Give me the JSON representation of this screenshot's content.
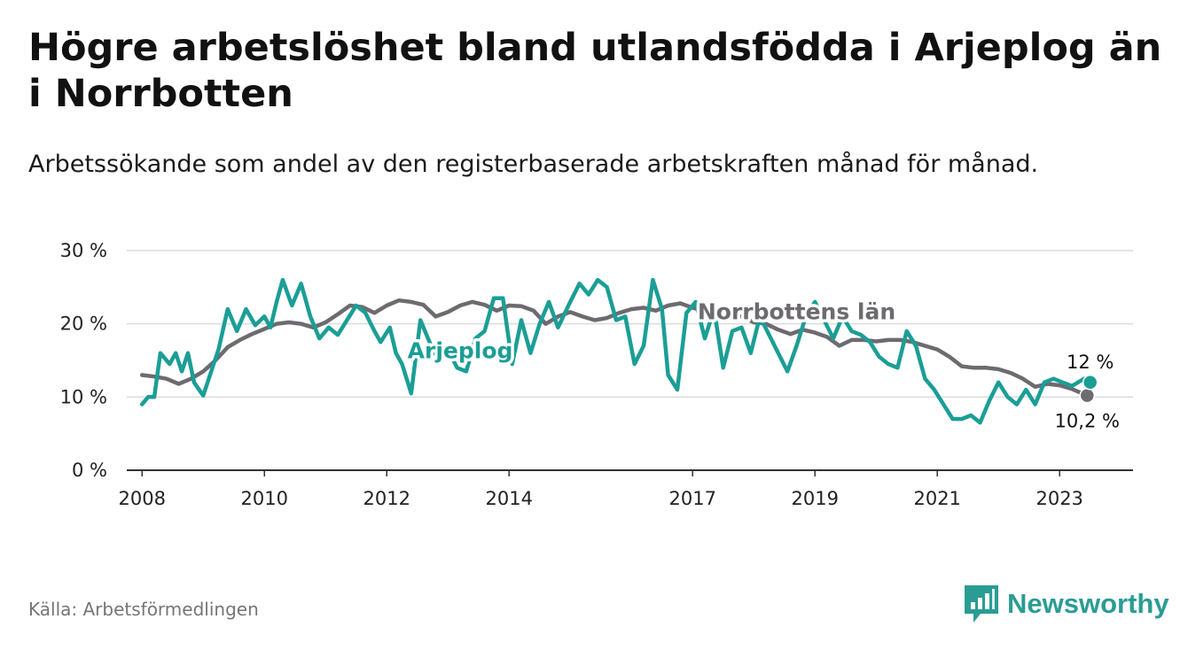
{
  "title": "Högre arbetslöshet bland utlandsfödda i Arjeplog än i Norrbotten",
  "subtitle": "Arbetssökande som andel av den registerbaserade arbetskraften månad för månad.",
  "source": "Källa: Arbetsförmedlingen",
  "brand": {
    "name": "Newsworthy",
    "icon": "bar-chart-logo-icon",
    "color": "#2a9c93"
  },
  "chart_data": {
    "type": "line",
    "title": "Högre arbetslöshet bland utlandsfödda i Arjeplog än i Norrbotten",
    "subtitle": "Arbetssökande som andel av den registerbaserade arbetskraften månad för månad.",
    "xlabel": "",
    "ylabel": "",
    "ylim": [
      0,
      30
    ],
    "xlim": [
      2007.75,
      2024.2
    ],
    "grid": true,
    "y_ticks": [
      {
        "value": 0,
        "label": "0 %"
      },
      {
        "value": 10,
        "label": "10 %"
      },
      {
        "value": 20,
        "label": "20 %"
      },
      {
        "value": 30,
        "label": "30 %"
      }
    ],
    "x_ticks": [
      {
        "value": 2008,
        "label": "2008"
      },
      {
        "value": 2010,
        "label": "2010"
      },
      {
        "value": 2012,
        "label": "2012"
      },
      {
        "value": 2014,
        "label": "2014"
      },
      {
        "value": 2017,
        "label": "2017"
      },
      {
        "value": 2019,
        "label": "2019"
      },
      {
        "value": 2021,
        "label": "2021"
      },
      {
        "value": 2023,
        "label": "2023"
      }
    ],
    "series": [
      {
        "name": "Norrbottens län",
        "color": "#6d6a70",
        "end_label": "10,2 %",
        "end_value": 10.2,
        "x": [
          2008,
          2008.2,
          2008.4,
          2008.6,
          2008.8,
          2009.0,
          2009.2,
          2009.4,
          2009.6,
          2009.8,
          2010.0,
          2010.2,
          2010.4,
          2010.6,
          2010.8,
          2011.0,
          2011.2,
          2011.4,
          2011.6,
          2011.8,
          2012.0,
          2012.2,
          2012.4,
          2012.6,
          2012.8,
          2013.0,
          2013.2,
          2013.4,
          2013.6,
          2013.8,
          2014.0,
          2014.2,
          2014.4,
          2014.6,
          2014.8,
          2015.0,
          2015.2,
          2015.4,
          2015.6,
          2015.8,
          2016.0,
          2016.2,
          2016.4,
          2016.6,
          2016.8,
          2017.0,
          2017.2,
          2017.4,
          2017.6,
          2017.8,
          2018.0,
          2018.2,
          2018.4,
          2018.6,
          2018.8,
          2019.0,
          2019.2,
          2019.4,
          2019.6,
          2019.8,
          2020.0,
          2020.2,
          2020.4,
          2020.6,
          2020.8,
          2021.0,
          2021.2,
          2021.4,
          2021.6,
          2021.8,
          2022.0,
          2022.2,
          2022.4,
          2022.6,
          2022.8,
          2023.0,
          2023.2,
          2023.45
        ],
        "values": [
          13.0,
          12.8,
          12.5,
          11.8,
          12.5,
          13.5,
          15.0,
          16.8,
          17.8,
          18.6,
          19.3,
          20.0,
          20.2,
          20.0,
          19.5,
          20.2,
          21.3,
          22.5,
          22.3,
          21.5,
          22.5,
          23.2,
          23.0,
          22.6,
          21.0,
          21.6,
          22.5,
          23.0,
          22.6,
          21.8,
          22.5,
          22.4,
          21.8,
          20.0,
          21.0,
          21.6,
          21.0,
          20.5,
          20.8,
          21.5,
          22.0,
          22.2,
          21.8,
          22.5,
          22.8,
          22.2,
          21.8,
          21.5,
          21.2,
          21.0,
          20.2,
          20.0,
          19.2,
          18.6,
          19.2,
          18.8,
          18.2,
          17.0,
          17.8,
          17.8,
          17.6,
          17.8,
          17.8,
          17.5,
          17.0,
          16.5,
          15.5,
          14.2,
          14.0,
          14.0,
          13.8,
          13.3,
          12.5,
          11.4,
          11.8,
          11.6,
          11.1,
          10.2
        ]
      },
      {
        "name": "Arjeplog",
        "color": "#1b9e96",
        "end_label": "12 %",
        "end_value": 12.0,
        "x": [
          2008,
          2008.1,
          2008.2,
          2008.3,
          2008.45,
          2008.55,
          2008.65,
          2008.75,
          2008.85,
          2009.0,
          2009.15,
          2009.25,
          2009.4,
          2009.55,
          2009.7,
          2009.85,
          2010.0,
          2010.1,
          2010.2,
          2010.3,
          2010.45,
          2010.6,
          2010.75,
          2010.9,
          2011.05,
          2011.2,
          2011.35,
          2011.5,
          2011.65,
          2011.8,
          2011.9,
          2012.05,
          2012.15,
          2012.25,
          2012.4,
          2012.55,
          2012.7,
          2012.85,
          2013.0,
          2013.15,
          2013.3,
          2013.45,
          2013.6,
          2013.75,
          2013.9,
          2014.05,
          2014.2,
          2014.35,
          2014.5,
          2014.65,
          2014.8,
          2015.0,
          2015.15,
          2015.3,
          2015.45,
          2015.6,
          2015.75,
          2015.9,
          2016.05,
          2016.2,
          2016.35,
          2016.5,
          2016.6,
          2016.75,
          2016.9,
          2017.05,
          2017.2,
          2017.35,
          2017.5,
          2017.65,
          2017.8,
          2017.95,
          2018.1,
          2018.25,
          2018.4,
          2018.55,
          2018.7,
          2018.85,
          2019.0,
          2019.15,
          2019.3,
          2019.45,
          2019.6,
          2019.75,
          2019.9,
          2020.05,
          2020.2,
          2020.35,
          2020.5,
          2020.65,
          2020.8,
          2020.95,
          2021.1,
          2021.25,
          2021.4,
          2021.55,
          2021.7,
          2021.85,
          2022.0,
          2022.15,
          2022.3,
          2022.45,
          2022.6,
          2022.75,
          2022.9,
          2023.05,
          2023.2,
          2023.3,
          2023.4,
          2023.5
        ],
        "values": [
          9.0,
          10.0,
          10.0,
          16.0,
          14.5,
          16.0,
          13.5,
          16.0,
          12.0,
          10.2,
          14.0,
          16.5,
          22.0,
          19.0,
          22.0,
          19.8,
          21.0,
          19.5,
          23.0,
          26.0,
          22.5,
          25.5,
          21.0,
          18.0,
          19.5,
          18.5,
          20.5,
          22.5,
          21.5,
          19.0,
          17.5,
          19.5,
          16.0,
          14.5,
          10.5,
          20.5,
          17.5,
          15.0,
          16.5,
          14.0,
          13.5,
          18.0,
          19.0,
          23.5,
          23.5,
          14.5,
          20.5,
          16.0,
          20.0,
          23.0,
          19.5,
          23.0,
          25.5,
          24.0,
          26.0,
          25.0,
          20.5,
          21.0,
          14.5,
          17.0,
          26.0,
          22.0,
          13.0,
          11.0,
          21.5,
          23.0,
          18.0,
          22.0,
          14.0,
          19.0,
          19.5,
          16.0,
          21.0,
          18.5,
          16.0,
          13.5,
          17.0,
          21.0,
          23.0,
          20.5,
          18.0,
          21.0,
          19.0,
          18.5,
          17.5,
          15.5,
          14.5,
          14.0,
          19.0,
          17.0,
          12.5,
          11.0,
          9.0,
          7.0,
          7.0,
          7.5,
          6.5,
          9.5,
          12.0,
          10.0,
          9.0,
          11.0,
          9.0,
          12.0,
          12.5,
          12.0,
          11.5,
          12.0,
          12.5,
          12.0
        ]
      }
    ],
    "annotations": [
      {
        "text": "Arjeplog",
        "series": "Arjeplog",
        "x": 2013.2,
        "y": 15.3
      },
      {
        "text": "Norrbottens län",
        "series": "Norrbottens län",
        "x": 2018.7,
        "y": 20.6
      }
    ]
  }
}
